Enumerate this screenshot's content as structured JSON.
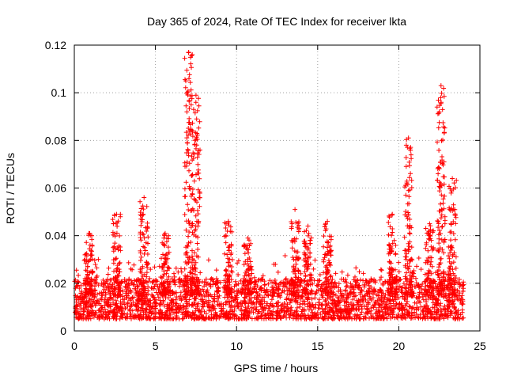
{
  "chart_data": {
    "type": "scatter",
    "title": "Day 365 of 2024, Rate Of TEC Index for receiver lkta",
    "xlabel": "GPS time / hours",
    "ylabel": "ROTI / TECUs",
    "xlim": [
      0,
      25
    ],
    "ylim": [
      0,
      0.12
    ],
    "xticks": [
      0,
      5,
      10,
      15,
      20,
      25
    ],
    "xtick_labels": [
      "0",
      "5",
      "10",
      "15",
      "20",
      "25"
    ],
    "yticks": [
      0,
      0.02,
      0.04,
      0.06,
      0.08,
      0.1,
      0.12
    ],
    "ytick_labels": [
      "0",
      "0.02",
      "0.04",
      "0.06",
      "0.08",
      "0.1",
      "0.12"
    ],
    "grid": true,
    "marker": "+",
    "color": "#ff0000",
    "time_range_hours": [
      0,
      24
    ],
    "baseline_roti_range": [
      0.005,
      0.022
    ],
    "spikes": [
      {
        "t": 0.9,
        "peak": 0.041
      },
      {
        "t": 2.6,
        "peak": 0.049
      },
      {
        "t": 4.3,
        "peak": 0.056
      },
      {
        "t": 5.6,
        "peak": 0.041
      },
      {
        "t": 7.05,
        "peak": 0.117
      },
      {
        "t": 7.5,
        "peak": 0.099
      },
      {
        "t": 9.5,
        "peak": 0.046
      },
      {
        "t": 10.7,
        "peak": 0.039
      },
      {
        "t": 13.6,
        "peak": 0.051
      },
      {
        "t": 14.4,
        "peak": 0.044
      },
      {
        "t": 15.6,
        "peak": 0.046
      },
      {
        "t": 19.6,
        "peak": 0.049
      },
      {
        "t": 20.6,
        "peak": 0.081
      },
      {
        "t": 21.9,
        "peak": 0.045
      },
      {
        "t": 22.6,
        "peak": 0.103
      },
      {
        "t": 23.3,
        "peak": 0.064
      }
    ]
  }
}
